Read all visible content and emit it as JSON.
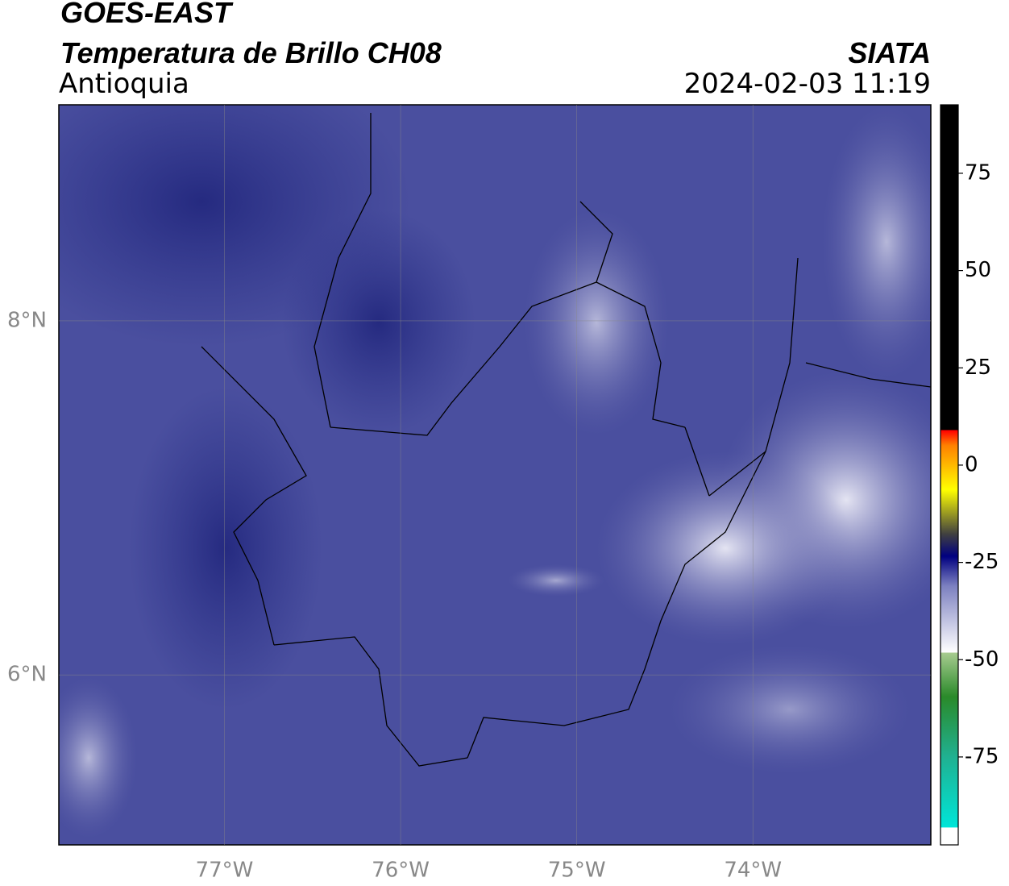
{
  "header": {
    "satellite": "GOES-EAST",
    "product": "Temperatura de Brillo CH08",
    "organization": "SIATA",
    "region": "Antioquia",
    "datetime": "2024-02-03 11:19"
  },
  "map": {
    "xlim": [
      -77.94,
      -72.99
    ],
    "ylim": [
      5.04,
      9.22
    ],
    "xticks": [
      {
        "value": -77,
        "label": "77°W"
      },
      {
        "value": -76,
        "label": "76°W"
      },
      {
        "value": -75,
        "label": "75°W"
      },
      {
        "value": -74,
        "label": "74°W"
      }
    ],
    "yticks": [
      {
        "value": 8,
        "label": "8°N"
      },
      {
        "value": 6,
        "label": "6°N"
      }
    ],
    "grid": true
  },
  "colorbar": {
    "lim": [
      -97.6,
      92.6
    ],
    "ticks": [
      75,
      50,
      25,
      0,
      -25,
      -50,
      -75
    ]
  }
}
